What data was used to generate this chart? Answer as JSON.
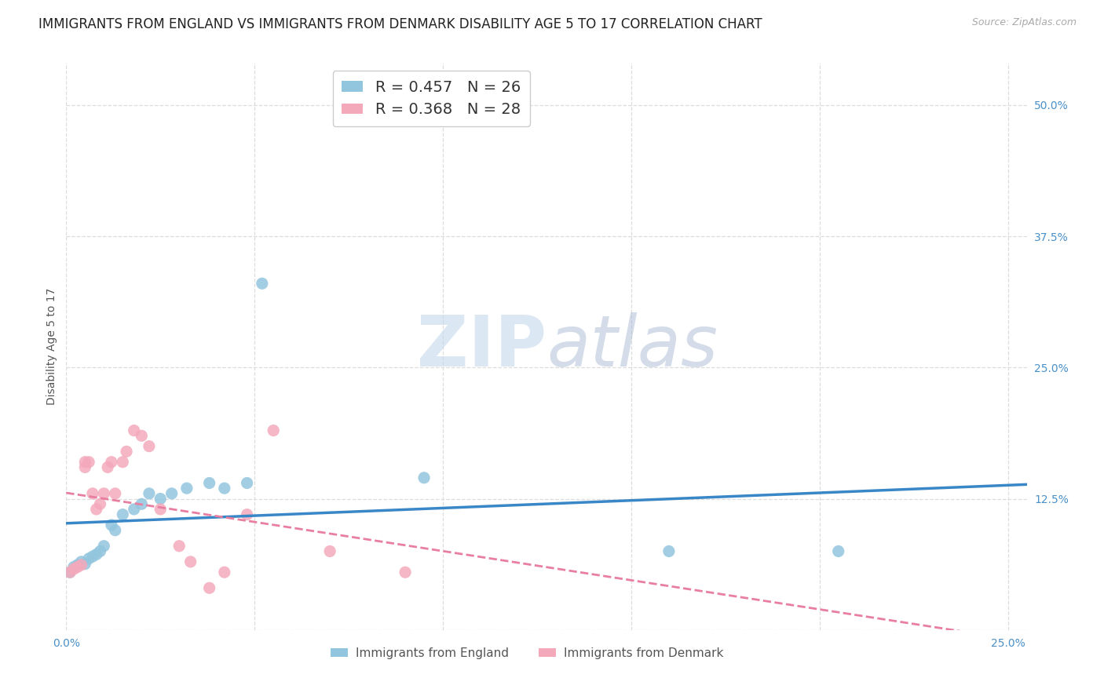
{
  "title": "IMMIGRANTS FROM ENGLAND VS IMMIGRANTS FROM DENMARK DISABILITY AGE 5 TO 17 CORRELATION CHART",
  "source": "Source: ZipAtlas.com",
  "ylabel": "Disability Age 5 to 17",
  "xlim": [
    0.0,
    0.255
  ],
  "ylim": [
    0.0,
    0.54
  ],
  "england_R": 0.457,
  "england_N": 26,
  "denmark_R": 0.368,
  "denmark_N": 28,
  "england_color": "#92c5de",
  "denmark_color": "#f4a9bb",
  "england_line_color": "#3a87c8",
  "denmark_line_color": "#e87fa0",
  "watermark_zip": "ZIP",
  "watermark_atlas": "atlas",
  "england_x": [
    0.001,
    0.002,
    0.003,
    0.004,
    0.005,
    0.006,
    0.007,
    0.008,
    0.009,
    0.01,
    0.012,
    0.013,
    0.015,
    0.018,
    0.02,
    0.022,
    0.025,
    0.028,
    0.032,
    0.038,
    0.042,
    0.048,
    0.052,
    0.095,
    0.16,
    0.205
  ],
  "england_y": [
    0.055,
    0.06,
    0.062,
    0.065,
    0.063,
    0.068,
    0.07,
    0.072,
    0.075,
    0.08,
    0.1,
    0.095,
    0.11,
    0.115,
    0.12,
    0.13,
    0.125,
    0.13,
    0.135,
    0.14,
    0.135,
    0.14,
    0.33,
    0.145,
    0.075,
    0.075
  ],
  "denmark_x": [
    0.001,
    0.002,
    0.003,
    0.004,
    0.005,
    0.005,
    0.006,
    0.007,
    0.008,
    0.009,
    0.01,
    0.011,
    0.012,
    0.013,
    0.015,
    0.016,
    0.018,
    0.02,
    0.022,
    0.025,
    0.03,
    0.033,
    0.038,
    0.042,
    0.048,
    0.055,
    0.07,
    0.09
  ],
  "denmark_y": [
    0.055,
    0.058,
    0.06,
    0.062,
    0.155,
    0.16,
    0.16,
    0.13,
    0.115,
    0.12,
    0.13,
    0.155,
    0.16,
    0.13,
    0.16,
    0.17,
    0.19,
    0.185,
    0.175,
    0.115,
    0.08,
    0.065,
    0.04,
    0.055,
    0.11,
    0.19,
    0.075,
    0.055
  ],
  "legend_label_england": "Immigrants from England",
  "legend_label_denmark": "Immigrants from Denmark",
  "ytick_positions": [
    0.0,
    0.125,
    0.25,
    0.375,
    0.5
  ],
  "yticklabels": [
    "",
    "12.5%",
    "25.0%",
    "37.5%",
    "50.0%"
  ],
  "xtick_positions": [
    0.0,
    0.05,
    0.1,
    0.15,
    0.2,
    0.25
  ],
  "xticklabels": [
    "0.0%",
    "",
    "",
    "",
    "",
    "25.0%"
  ],
  "background_color": "#ffffff",
  "grid_color": "#dddddd",
  "tick_color": "#4a90c8",
  "title_fontsize": 12,
  "axis_label_fontsize": 10,
  "tick_fontsize": 10
}
